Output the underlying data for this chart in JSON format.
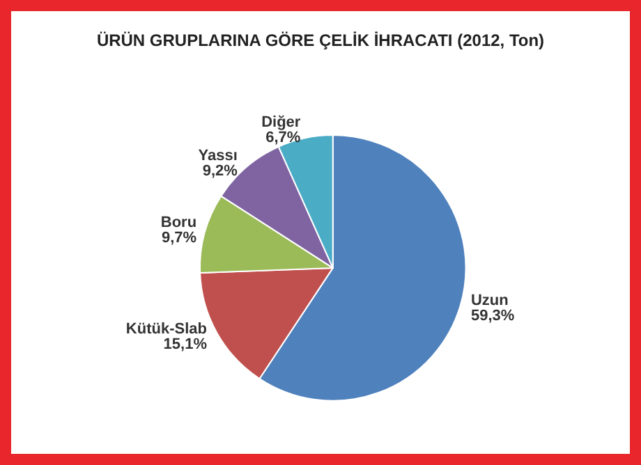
{
  "chart_data": {
    "type": "pie",
    "title": "ÜRÜN GRUPLARINA GÖRE ÇELİK İHRACATI (2012, Ton)",
    "categories": [
      "Uzun",
      "Kütük-Slab",
      "Boru",
      "Yassı",
      "Diğer"
    ],
    "values": [
      59.3,
      15.1,
      9.7,
      9.2,
      6.7
    ],
    "colors": [
      "#4f81bd",
      "#c0504d",
      "#9bbb59",
      "#8064a2",
      "#4bacc6"
    ],
    "value_labels": [
      "59,3%",
      "15,1%",
      "9,7%",
      "9,2%",
      "6,7%"
    ],
    "legend": false
  }
}
